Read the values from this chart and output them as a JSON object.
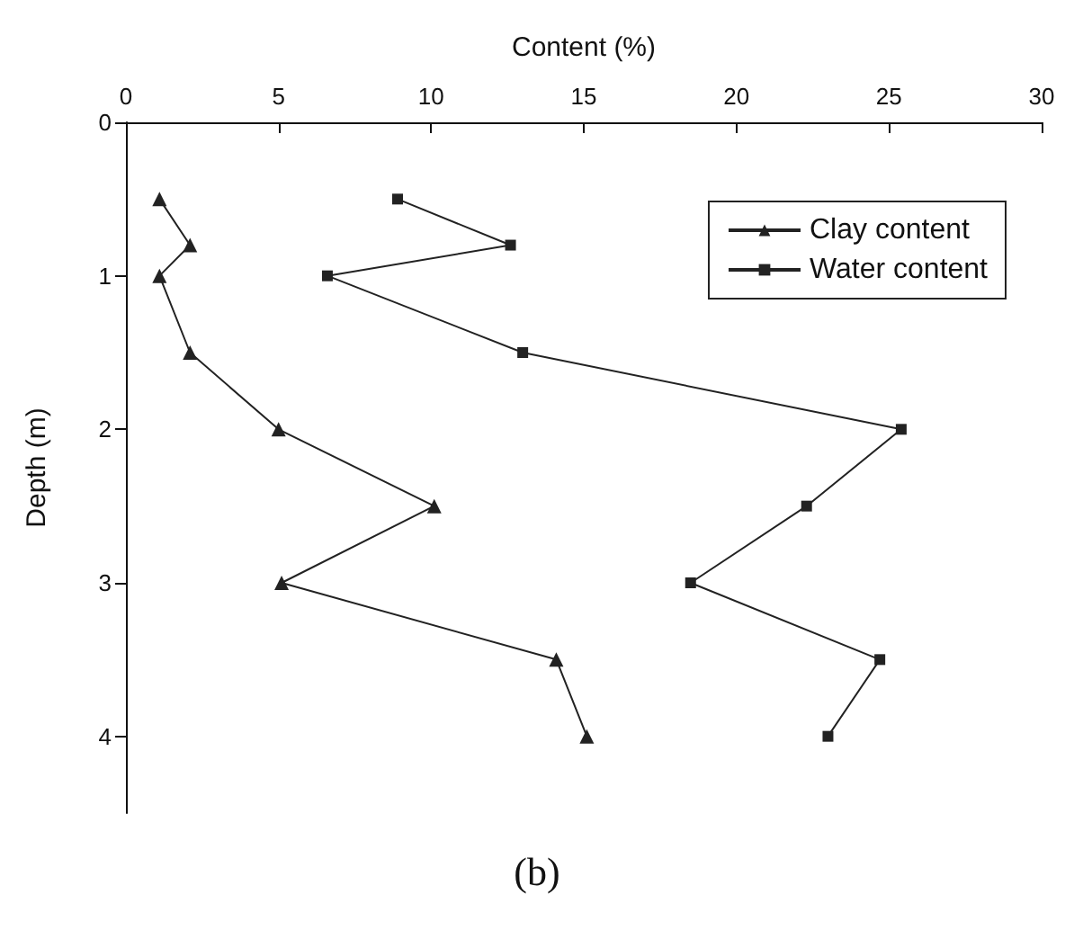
{
  "chart_data": {
    "type": "line",
    "xlabel": "Content (%)",
    "ylabel": "Depth (m)",
    "annotations": [
      "(b)"
    ],
    "series": [
      {
        "name": "Clay content",
        "color": "#222222",
        "marker": "triangle",
        "x": [
          1.1,
          2.1,
          1.1,
          2.1,
          5.0,
          10.1,
          5.1,
          14.1,
          15.1
        ],
        "values": [
          0.5,
          0.8,
          1.0,
          1.5,
          2.0,
          2.5,
          3.0,
          3.5,
          4.0
        ]
      },
      {
        "name": "Water content",
        "color": "#222222",
        "marker": "square",
        "x": [
          8.9,
          12.6,
          6.6,
          13.0,
          25.4,
          22.3,
          18.5,
          24.7,
          23.0
        ],
        "values": [
          0.5,
          0.8,
          1.0,
          1.5,
          2.0,
          2.5,
          3.0,
          3.5,
          4.0
        ]
      }
    ],
    "xlim": [
      0,
      30
    ],
    "xticks": [
      0,
      5,
      10,
      15,
      20,
      25,
      30
    ],
    "ylim": [
      4.5,
      0
    ],
    "yticks": [
      0,
      1,
      2,
      3,
      4
    ],
    "grid": false,
    "legend": "top right",
    "line_style": "solid"
  }
}
